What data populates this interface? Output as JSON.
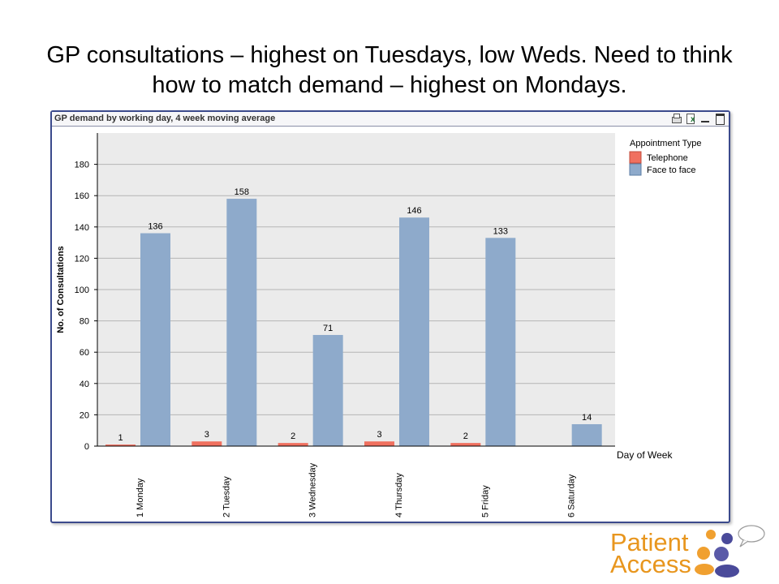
{
  "slide": {
    "title": "GP consultations – highest on Tuesdays, low Weds.  Need to think how to match demand – highest on Mondays."
  },
  "panel": {
    "title": "GP demand by working day, 4 week moving average",
    "tools": [
      "print-icon",
      "export-excel-icon",
      "minimize-icon",
      "maximize-icon"
    ]
  },
  "chart_data": {
    "type": "bar",
    "categories": [
      "1 Monday",
      "2 Tuesday",
      "3 Wednesday",
      "4 Thursday",
      "5 Friday",
      "6 Saturday"
    ],
    "series": [
      {
        "name": "Telephone",
        "color": "#f0705f",
        "values": [
          1,
          3,
          2,
          3,
          2,
          null
        ]
      },
      {
        "name": "Face to face",
        "color": "#8eaacb",
        "values": [
          136,
          158,
          71,
          146,
          133,
          14
        ]
      }
    ],
    "xlabel": "Day of Week",
    "ylabel": "No. of Consultations",
    "ylim": [
      0,
      200
    ],
    "yticks": [
      0,
      20,
      40,
      60,
      80,
      100,
      120,
      140,
      160,
      180
    ],
    "legend_title": "Appointment Type",
    "legend_position": "top-right",
    "grid": true,
    "plot_background": "#ebebeb"
  },
  "logo": {
    "line1": "Patient",
    "line2": "Access"
  }
}
